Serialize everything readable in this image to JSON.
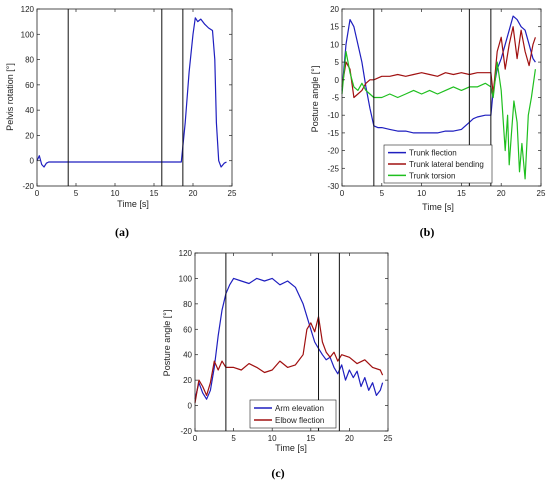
{
  "chart_data": [
    {
      "id": "a",
      "type": "line",
      "panel_label": "(a)",
      "xlabel": "Time [s]",
      "ylabel": "Pelvis rotation [°]",
      "xlim": [
        0,
        25
      ],
      "ylim": [
        -20,
        120
      ],
      "xticks": [
        0,
        5,
        10,
        15,
        20,
        25
      ],
      "yticks": [
        -20,
        0,
        20,
        40,
        60,
        80,
        100,
        120
      ],
      "grid": false,
      "vlines": [
        4.0,
        16.0,
        18.7
      ],
      "series": [
        {
          "color": "#1f1fbf",
          "x": [
            0,
            0.3,
            0.6,
            0.9,
            1.2,
            1.5,
            2,
            3,
            4,
            5,
            6,
            7,
            8,
            9,
            10,
            11,
            12,
            13,
            14,
            15,
            16,
            17,
            18,
            18.5,
            19,
            19.5,
            20,
            20.3,
            20.6,
            21,
            21.5,
            22,
            22.5,
            22.8,
            23,
            23.3,
            23.6,
            24,
            24.3
          ],
          "y": [
            0,
            4,
            -3,
            -5,
            -2,
            -1,
            -1,
            -1,
            -1,
            -1,
            -1,
            -1,
            -1,
            -1,
            -1,
            -1,
            -1,
            -1,
            -1,
            -1,
            -1,
            -1,
            -1,
            -1,
            30,
            70,
            100,
            113,
            110,
            112,
            108,
            105,
            103,
            80,
            30,
            0,
            -5,
            -2,
            -1
          ]
        }
      ]
    },
    {
      "id": "b",
      "type": "line",
      "panel_label": "(b)",
      "xlabel": "Time [s]",
      "ylabel": "Posture angle [°]",
      "xlim": [
        0,
        25
      ],
      "ylim": [
        -30,
        20
      ],
      "xticks": [
        0,
        5,
        10,
        15,
        20,
        25
      ],
      "yticks": [
        -30,
        -25,
        -20,
        -15,
        -10,
        -5,
        0,
        5,
        10,
        15,
        20
      ],
      "grid": false,
      "vlines": [
        4.0,
        16.0,
        18.7
      ],
      "legend": {
        "position": "bottom-right",
        "entries": [
          "Trunk flection",
          "Trunk lateral bending",
          "Trunk torsion"
        ]
      },
      "series": [
        {
          "name": "Trunk flection",
          "color": "#1f1fbf",
          "x": [
            0,
            0.5,
            1,
            1.5,
            2,
            2.5,
            3,
            3.5,
            4,
            4.5,
            5,
            6,
            7,
            8,
            9,
            10,
            11,
            12,
            13,
            14,
            15,
            16,
            16.5,
            17,
            18,
            18.7,
            19,
            19.5,
            20,
            20.5,
            21,
            21.5,
            22,
            22.5,
            23,
            23.5,
            24,
            24.3
          ],
          "y": [
            -3,
            10,
            17,
            15,
            10,
            5,
            -2,
            -8,
            -13,
            -13.5,
            -13.5,
            -14,
            -14.5,
            -14.5,
            -15,
            -15,
            -15,
            -15,
            -14.5,
            -14.5,
            -14,
            -12,
            -11,
            -10.5,
            -10,
            -10,
            -3,
            3,
            6,
            10,
            14,
            18,
            17,
            15,
            14,
            10,
            6,
            5
          ]
        },
        {
          "name": "Trunk lateral bending",
          "color": "#a01010",
          "x": [
            0,
            0.5,
            1,
            1.5,
            2,
            2.5,
            3,
            3.5,
            4,
            5,
            6,
            7,
            8,
            9,
            10,
            11,
            12,
            13,
            14,
            15,
            16,
            17,
            18,
            18.7,
            19,
            19.5,
            20,
            20.5,
            21,
            21.5,
            22,
            22.5,
            23,
            23.5,
            24,
            24.3
          ],
          "y": [
            -2,
            5,
            3,
            -5,
            -4,
            -3,
            -1,
            0,
            0,
            1,
            1,
            1.5,
            1,
            1.5,
            2,
            1.5,
            1,
            2,
            1.5,
            2,
            1.5,
            2,
            2,
            2,
            -4,
            8,
            12,
            3,
            10,
            15,
            6,
            14,
            8,
            4,
            10,
            12
          ]
        },
        {
          "name": "Trunk torsion",
          "color": "#1fbf1f",
          "x": [
            0,
            0.5,
            1,
            1.5,
            2,
            2.5,
            3,
            3.5,
            4,
            5,
            6,
            7,
            8,
            9,
            10,
            11,
            12,
            13,
            14,
            15,
            16,
            17,
            18,
            18.7,
            19,
            19.5,
            20,
            20.5,
            20.8,
            21,
            21.3,
            21.6,
            22,
            22.3,
            22.6,
            23,
            23.4,
            23.8,
            24.3
          ],
          "y": [
            -4,
            8,
            2,
            -2,
            -3,
            -1,
            -3,
            -4,
            -5,
            -5,
            -4,
            -5,
            -4,
            -3,
            -4,
            -3,
            -4,
            -3,
            -2,
            -3,
            -2,
            -2,
            -1,
            -2,
            -5,
            5,
            -3,
            -20,
            -10,
            -24,
            -15,
            -6,
            -12,
            -26,
            -18,
            -28,
            -10,
            -5,
            3
          ]
        }
      ]
    },
    {
      "id": "c",
      "type": "line",
      "panel_label": "(c)",
      "xlabel": "Time [s]",
      "ylabel": "Posture angle [°]",
      "xlim": [
        0,
        25
      ],
      "ylim": [
        -20,
        120
      ],
      "xticks": [
        0,
        5,
        10,
        15,
        20,
        25
      ],
      "yticks": [
        -20,
        0,
        20,
        40,
        60,
        80,
        100,
        120
      ],
      "grid": false,
      "vlines": [
        4.0,
        16.0,
        18.7
      ],
      "legend": {
        "position": "bottom-center",
        "entries": [
          "Arm elevation",
          "Elbow flection"
        ]
      },
      "series": [
        {
          "name": "Arm elevation",
          "color": "#1f1fbf",
          "x": [
            0,
            0.5,
            1,
            1.5,
            2,
            2.5,
            3,
            3.5,
            4,
            4.5,
            5,
            6,
            7,
            8,
            9,
            10,
            11,
            12,
            13,
            14,
            15,
            15.5,
            16,
            16.5,
            17,
            17.5,
            18,
            18.5,
            19,
            19.5,
            20,
            20.5,
            21,
            21.5,
            22,
            22.5,
            23,
            23.5,
            24,
            24.3
          ],
          "y": [
            5,
            18,
            10,
            5,
            12,
            30,
            55,
            75,
            88,
            95,
            100,
            98,
            96,
            100,
            98,
            100,
            95,
            98,
            93,
            80,
            60,
            50,
            45,
            40,
            36,
            38,
            30,
            25,
            32,
            20,
            28,
            22,
            27,
            15,
            22,
            12,
            18,
            8,
            12,
            18
          ]
        },
        {
          "name": "Elbow flection",
          "color": "#a01010",
          "x": [
            0,
            0.5,
            1,
            1.5,
            2,
            2.5,
            3,
            3.5,
            4,
            5,
            6,
            7,
            8,
            9,
            10,
            11,
            12,
            13,
            14,
            14.5,
            15,
            15.5,
            16,
            16.5,
            17,
            17.5,
            18,
            18.5,
            19,
            20,
            21,
            22,
            23,
            24,
            24.3
          ],
          "y": [
            2,
            20,
            15,
            8,
            18,
            35,
            28,
            35,
            30,
            30,
            28,
            33,
            30,
            26,
            28,
            35,
            30,
            32,
            40,
            60,
            65,
            58,
            70,
            50,
            42,
            38,
            42,
            35,
            40,
            38,
            33,
            36,
            30,
            28,
            24
          ]
        }
      ]
    }
  ]
}
